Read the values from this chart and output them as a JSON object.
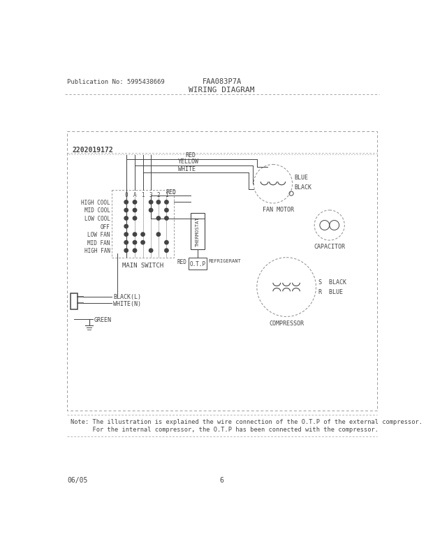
{
  "bg_color": "#ffffff",
  "pub_no": "Publication No: 5995438669",
  "model": "FAA083P7A",
  "title": "WIRING DIAGRAM",
  "part_no": "2202019172",
  "footer_left": "06/05",
  "footer_center": "6",
  "note_line1": "Note: The illustration is explained the wire connection of the O.T.P of the external compressor.",
  "note_line2": "      For the internal compressor, the O.T.P has been connected with the compressor.",
  "switch_rows": [
    "HIGH COOL",
    "MID COOL",
    "LOW COOL",
    "OFF",
    "LOW FAN",
    "MID FAN",
    "HIGH FAN"
  ],
  "switch_cols": [
    "0",
    "A",
    "1",
    "3",
    "2",
    "1"
  ],
  "main_switch_label": "MAIN SWITCH",
  "thermostat_label": "THERMOSTAT",
  "otp_label": "O.T.P",
  "fan_motor_label": "FAN MOTOR",
  "capacitor_label": "CAPACITOR",
  "compressor_label": "COMPRESSOR",
  "black_l_label": "BLACK(L)",
  "white_n_label": "WHITE(N)",
  "green_label": "GREEN",
  "blue_label": "BLUE",
  "black_label": "BLACK",
  "s_black_label": "S  BLACK",
  "r_blue_label": "R  BLUE",
  "refrigerant_label": "REFRIGERANT",
  "red_label": "RED",
  "yellow_label": "YELLOW",
  "white_label": "WHITE"
}
